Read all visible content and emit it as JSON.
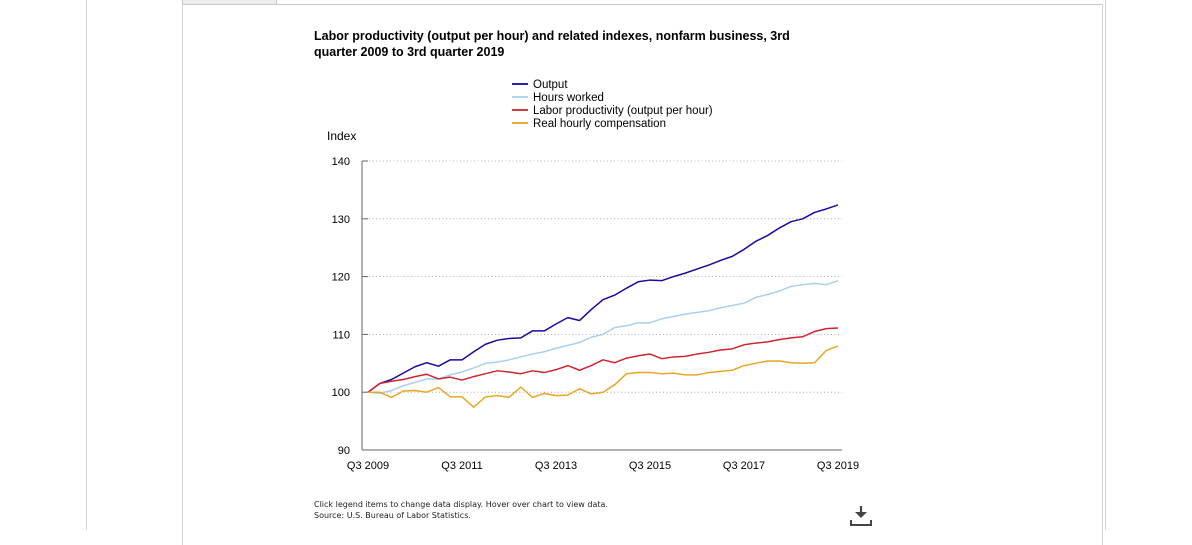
{
  "chart_data": {
    "type": "line",
    "title": "Labor productivity (output per hour) and related indexes, nonfarm business, 3rd quarter 2009 to 3rd quarter 2019",
    "ylabel": "Index",
    "xlabel": "",
    "ylim": [
      90,
      140
    ],
    "yticks": [
      90,
      100,
      110,
      120,
      130,
      140
    ],
    "xtick_labels": [
      "Q3 2009",
      "Q3 2011",
      "Q3 2013",
      "Q3 2015",
      "Q3 2017",
      "Q3 2019"
    ],
    "x": [
      "Q3 2009",
      "Q4 2009",
      "Q1 2010",
      "Q2 2010",
      "Q3 2010",
      "Q4 2010",
      "Q1 2011",
      "Q2 2011",
      "Q3 2011",
      "Q4 2011",
      "Q1 2012",
      "Q2 2012",
      "Q3 2012",
      "Q4 2012",
      "Q1 2013",
      "Q2 2013",
      "Q3 2013",
      "Q4 2013",
      "Q1 2014",
      "Q2 2014",
      "Q3 2014",
      "Q4 2014",
      "Q1 2015",
      "Q2 2015",
      "Q3 2015",
      "Q4 2015",
      "Q1 2016",
      "Q2 2016",
      "Q3 2016",
      "Q4 2016",
      "Q1 2017",
      "Q2 2017",
      "Q3 2017",
      "Q4 2017",
      "Q1 2018",
      "Q2 2018",
      "Q3 2018",
      "Q4 2018",
      "Q1 2019",
      "Q2 2019",
      "Q3 2019"
    ],
    "grid": "horizontal dotted",
    "legend_position": "top",
    "series": [
      {
        "name": "Output",
        "color": "#1a0a9e",
        "values": [
          100.0,
          101.5,
          102.2,
          103.3,
          104.4,
          105.1,
          104.5,
          105.6,
          105.6,
          107.0,
          108.3,
          109.0,
          109.3,
          109.4,
          110.6,
          110.6,
          111.8,
          112.9,
          112.4,
          114.3,
          116.0,
          116.8,
          118.0,
          119.1,
          119.4,
          119.3,
          120.0,
          120.6,
          121.3,
          122.0,
          122.8,
          123.5,
          124.7,
          126.1,
          127.1,
          128.4,
          129.5,
          130.0,
          131.1,
          131.7,
          132.4
        ]
      },
      {
        "name": "Hours worked",
        "color": "#a8cff0",
        "values": [
          100.0,
          99.8,
          100.3,
          101.1,
          101.7,
          102.3,
          102.3,
          103.0,
          103.5,
          104.2,
          105.0,
          105.2,
          105.6,
          106.1,
          106.6,
          107.0,
          107.6,
          108.1,
          108.6,
          109.5,
          110.0,
          111.2,
          111.5,
          112.0,
          112.0,
          112.7,
          113.1,
          113.5,
          113.8,
          114.1,
          114.6,
          115.0,
          115.4,
          116.4,
          116.9,
          117.5,
          118.3,
          118.6,
          118.8,
          118.6,
          119.3
        ]
      },
      {
        "name": "Labor productivity (output per hour)",
        "color": "#d0242f",
        "values": [
          100.0,
          101.5,
          101.9,
          102.2,
          102.7,
          103.1,
          102.3,
          102.6,
          102.1,
          102.7,
          103.2,
          103.7,
          103.5,
          103.2,
          103.7,
          103.4,
          103.9,
          104.6,
          103.8,
          104.6,
          105.6,
          105.1,
          105.9,
          106.3,
          106.6,
          105.8,
          106.1,
          106.2,
          106.6,
          106.9,
          107.3,
          107.5,
          108.2,
          108.5,
          108.7,
          109.1,
          109.4,
          109.6,
          110.5,
          111.0,
          111.1
        ]
      },
      {
        "name": "Real hourly compensation",
        "color": "#e6a825",
        "values": [
          100.0,
          100.0,
          99.1,
          100.2,
          100.3,
          100.0,
          100.8,
          99.2,
          99.2,
          97.4,
          99.2,
          99.4,
          99.1,
          100.9,
          99.1,
          99.8,
          99.4,
          99.5,
          100.6,
          99.7,
          100.0,
          101.3,
          103.2,
          103.4,
          103.4,
          103.2,
          103.3,
          103.0,
          103.0,
          103.4,
          103.6,
          103.8,
          104.6,
          105.0,
          105.4,
          105.4,
          105.1,
          105.0,
          105.1,
          107.2,
          108.0
        ]
      }
    ]
  },
  "footer": {
    "instructions": "Click legend items to change data display. Hover over chart to view data.",
    "source": "Source: U.S. Bureau of Labor Statistics."
  },
  "icons": {
    "download": "download-icon"
  }
}
